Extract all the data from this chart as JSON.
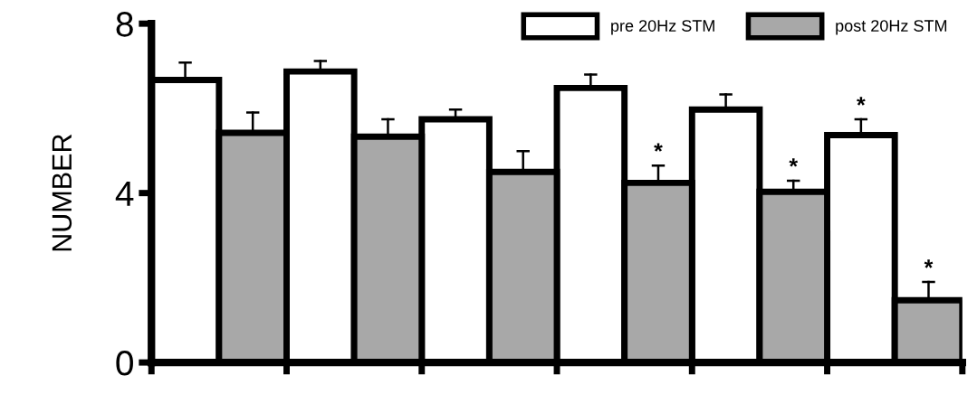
{
  "chart_data": {
    "type": "bar",
    "ylabel": "NUMBER",
    "categories": [
      null,
      null,
      null,
      null,
      null,
      null
    ],
    "series": [
      {
        "name": "pre 20Hz STM",
        "color": "#ffffff",
        "values": [
          6.67,
          6.87,
          5.74,
          6.48,
          5.97,
          5.37
        ],
        "errors": [
          [
            6.67,
            7.08
          ],
          [
            6.87,
            7.12
          ],
          [
            5.74,
            5.97
          ],
          [
            6.48,
            6.8
          ],
          [
            5.97,
            6.33
          ],
          [
            5.37,
            5.74
          ]
        ],
        "value_labels": [
          null,
          null,
          null,
          null,
          null,
          "*"
        ]
      },
      {
        "name": "post 20Hz STM",
        "color": "#a8a8a8",
        "values": [
          5.42,
          5.33,
          4.5,
          4.24,
          4.03,
          1.47
        ],
        "errors": [
          [
            5.42,
            5.9
          ],
          [
            5.33,
            5.74
          ],
          [
            4.5,
            4.99
          ],
          [
            4.24,
            4.65
          ],
          [
            4.03,
            4.29
          ],
          [
            1.47,
            1.9
          ]
        ],
        "value_labels": [
          null,
          null,
          null,
          "*",
          "*",
          "*"
        ]
      }
    ],
    "ylim": [
      0,
      8
    ],
    "yticks": [
      0,
      4,
      8
    ],
    "grid": false,
    "legend": "top right"
  }
}
